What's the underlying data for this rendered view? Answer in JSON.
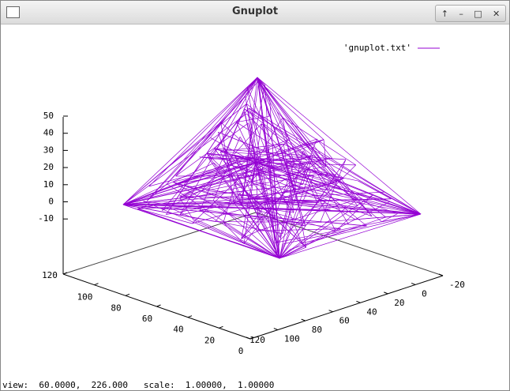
{
  "window": {
    "title": "Gnuplot"
  },
  "plot": {
    "legend": "'gnuplot.txt'",
    "z_ticks": [
      "50",
      "40",
      "30",
      "20",
      "10",
      "0",
      "-10"
    ],
    "left_ticks": [
      "120",
      "100",
      "80",
      "60",
      "40",
      "20",
      "0"
    ],
    "right_ticks": [
      "120",
      "100",
      "80",
      "60",
      "40",
      "20",
      "0",
      "-20"
    ]
  },
  "status": {
    "view": "view:  60.0000,  226.000",
    "scale": "scale:  1.00000,  1.00000"
  }
}
